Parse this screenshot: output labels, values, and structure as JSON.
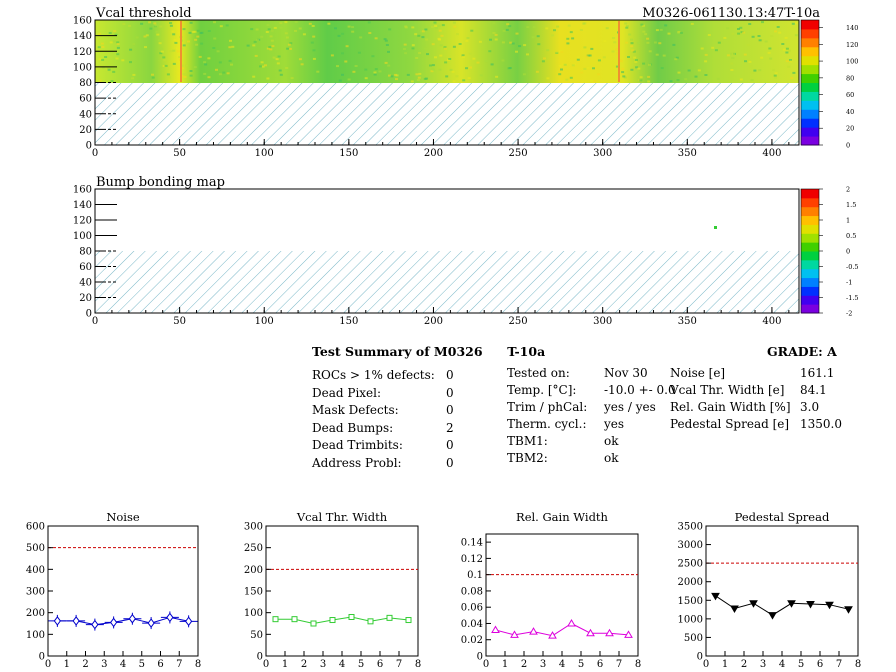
{
  "module_id": "M0326-061130.13:47T-10a",
  "vcal_map": {
    "title": "Vcal threshold",
    "x_ticks": [
      "0",
      "50",
      "100",
      "150",
      "200",
      "250",
      "300",
      "350",
      "400"
    ],
    "y_ticks": [
      "0",
      "20",
      "40",
      "60",
      "80",
      "100",
      "120",
      "140",
      "160"
    ],
    "color_scale_ticks": [
      "0",
      "20",
      "40",
      "60",
      "80",
      "100",
      "120",
      "140"
    ]
  },
  "bump_map": {
    "title": "Bump bonding map",
    "x_ticks": [
      "0",
      "50",
      "100",
      "150",
      "200",
      "250",
      "300",
      "350",
      "400"
    ],
    "y_ticks": [
      "0",
      "20",
      "40",
      "60",
      "80",
      "100",
      "120",
      "140",
      "160"
    ],
    "color_scale_ticks": [
      "-2",
      "-1.5",
      "-1",
      "-0.5",
      "0",
      "0.5",
      "1",
      "1.5",
      "2"
    ]
  },
  "summary": {
    "title": "Test Summary of M0326",
    "temp_tag": "T-10a",
    "grade_label": "GRADE:",
    "grade": "A",
    "defects": [
      {
        "label": "ROCs > 1% defects:",
        "value": "0"
      },
      {
        "label": "Dead Pixel:",
        "value": "0"
      },
      {
        "label": "Mask Defects:",
        "value": "0"
      },
      {
        "label": "Dead Bumps:",
        "value": "2"
      },
      {
        "label": "Dead Trimbits:",
        "value": "0"
      },
      {
        "label": "Address Probl:",
        "value": "0"
      }
    ],
    "conditions": [
      {
        "label": "Tested on:",
        "value": "Nov 30"
      },
      {
        "label": "Temp. [°C]:",
        "value": "-10.0 +- 0.0"
      },
      {
        "label": "Trim / phCal:",
        "value": "yes / yes"
      },
      {
        "label": "Therm. cycl.:",
        "value": "yes"
      },
      {
        "label": "TBM1:",
        "value": "ok"
      },
      {
        "label": "TBM2:",
        "value": "ok"
      }
    ],
    "results": [
      {
        "label": "Noise [e]",
        "value": "161.1"
      },
      {
        "label": "Vcal Thr. Width [e]",
        "value": "84.1"
      },
      {
        "label": "Rel. Gain Width [%]",
        "value": "3.0"
      },
      {
        "label": "Pedestal Spread [e]",
        "value": "1350.0"
      }
    ]
  },
  "colors": {
    "noise": "#0000cc",
    "vcal_width": "#33cc33",
    "gain_width": "#dd00dd",
    "pedestal": "#000000",
    "limit_line": "#cc0000",
    "hatch": "#7ab8c8"
  },
  "chart_data": [
    {
      "type": "line",
      "title": "Noise",
      "x": [
        0.5,
        1.5,
        2.5,
        3.5,
        4.5,
        5.5,
        6.5,
        7.5
      ],
      "values": [
        162,
        162,
        145,
        155,
        172,
        152,
        178,
        160
      ],
      "limit": 500,
      "xlim": [
        0,
        8
      ],
      "ylim": [
        0,
        600
      ],
      "y_ticks": [
        0,
        100,
        200,
        300,
        400,
        500,
        600
      ],
      "x_ticks": [
        0,
        1,
        2,
        3,
        4,
        5,
        6,
        7,
        8
      ],
      "marker": "diamond-open"
    },
    {
      "type": "line",
      "title": "Vcal Thr. Width",
      "x": [
        0.5,
        1.5,
        2.5,
        3.5,
        4.5,
        5.5,
        6.5,
        7.5
      ],
      "values": [
        85,
        85,
        75,
        83,
        90,
        80,
        88,
        83
      ],
      "limit": 200,
      "xlim": [
        0,
        8
      ],
      "ylim": [
        0,
        300
      ],
      "y_ticks": [
        0,
        50,
        100,
        150,
        200,
        250,
        300
      ],
      "x_ticks": [
        0,
        1,
        2,
        3,
        4,
        5,
        6,
        7,
        8
      ],
      "marker": "square-open"
    },
    {
      "type": "line",
      "title": "Rel. Gain Width",
      "x": [
        0.5,
        1.5,
        2.5,
        3.5,
        4.5,
        5.5,
        6.5,
        7.5
      ],
      "values": [
        0.032,
        0.026,
        0.03,
        0.025,
        0.04,
        0.028,
        0.028,
        0.026
      ],
      "limit": 0.1,
      "xlim": [
        0,
        8
      ],
      "ylim": [
        0,
        0.15
      ],
      "y_ticks": [
        0,
        0.02,
        0.04,
        0.06,
        0.08,
        0.1,
        0.12,
        0.14
      ],
      "x_ticks": [
        0,
        1,
        2,
        3,
        4,
        5,
        6,
        7,
        8
      ],
      "marker": "triangle-open"
    },
    {
      "type": "line",
      "title": "Pedestal Spread",
      "x": [
        0.5,
        1.5,
        2.5,
        3.5,
        4.5,
        5.5,
        6.5,
        7.5
      ],
      "values": [
        1620,
        1280,
        1420,
        1100,
        1420,
        1400,
        1380,
        1260
      ],
      "limit": 2500,
      "xlim": [
        0,
        8
      ],
      "ylim": [
        0,
        3500
      ],
      "y_ticks": [
        0,
        500,
        1000,
        1500,
        2000,
        2500,
        3000,
        3500
      ],
      "x_ticks": [
        0,
        1,
        2,
        3,
        4,
        5,
        6,
        7,
        8
      ],
      "marker": "triangle-down"
    }
  ]
}
